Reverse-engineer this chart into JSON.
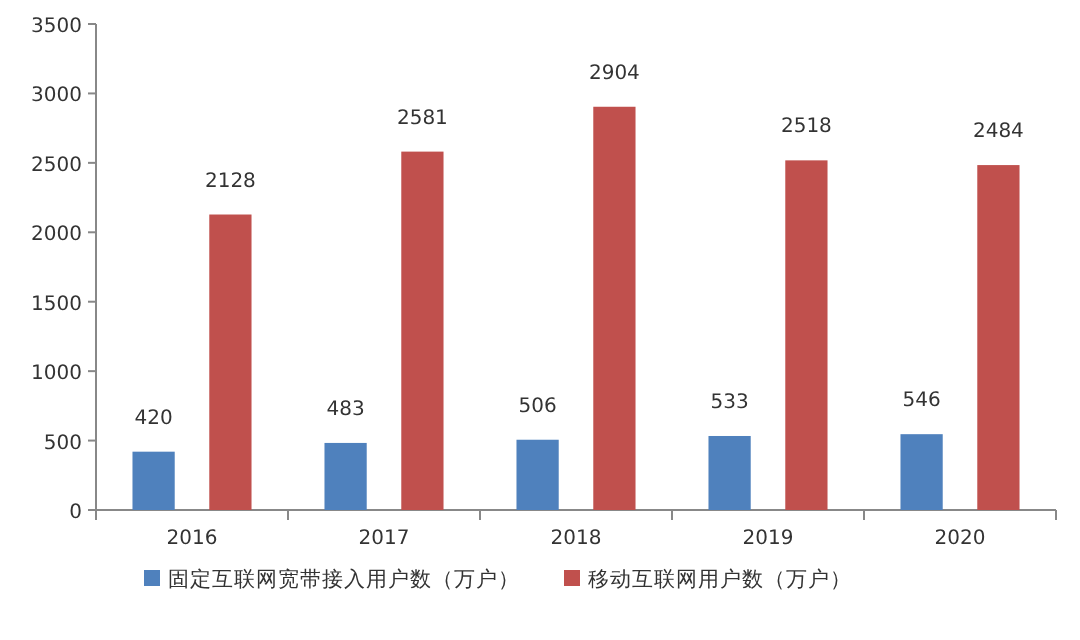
{
  "chart_data": {
    "type": "bar",
    "categories": [
      "2016",
      "2017",
      "2018",
      "2019",
      "2020"
    ],
    "series": [
      {
        "name": "固定互联网宽带接入用户数（万户）",
        "color": "#4f81bd",
        "values": [
          420,
          483,
          506,
          533,
          546
        ]
      },
      {
        "name": "移动互联网用户数（万户）",
        "color": "#c0504d",
        "values": [
          2128,
          2581,
          2904,
          2518,
          2484
        ]
      }
    ],
    "ylim": [
      0,
      3500
    ],
    "yticks": [
      0,
      500,
      1000,
      1500,
      2000,
      2500,
      3000,
      3500
    ],
    "grid": false,
    "legend": "bottom",
    "data_labels": true
  }
}
